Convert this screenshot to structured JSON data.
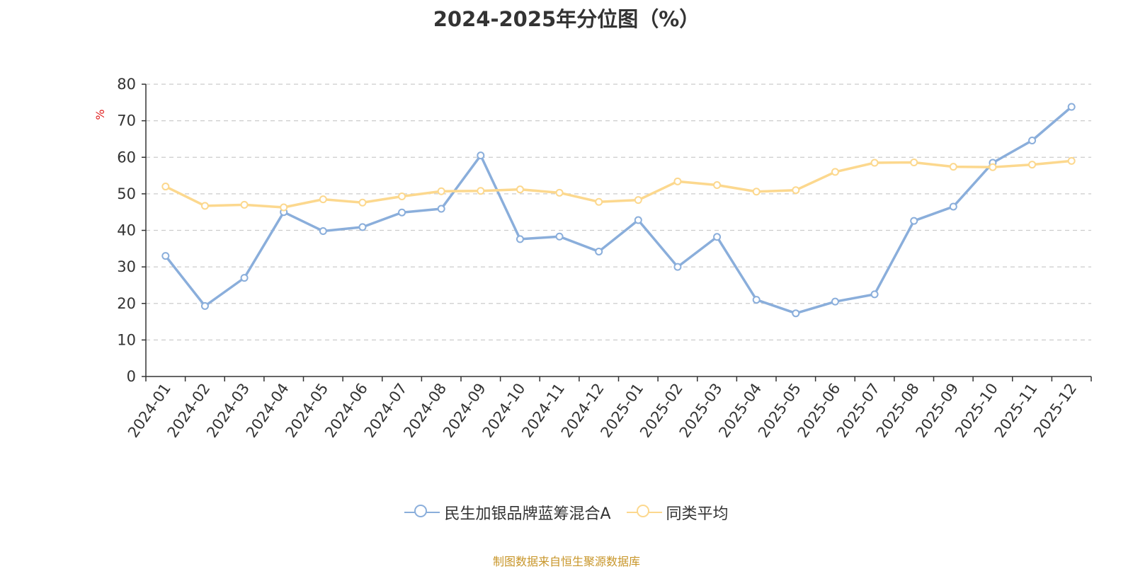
{
  "colors": {
    "series_a": "#8aaedb",
    "series_b": "#fcd88e",
    "axis": "#333333",
    "grid": "#cccccc",
    "ylabel": "#e02020",
    "source": "#c8962a"
  },
  "chart_data": {
    "type": "line",
    "title": "2024-2025年分位图（%）",
    "ylabel": "%",
    "xlabel": "",
    "ylim": [
      0,
      80
    ],
    "yticks": [
      0,
      10,
      20,
      30,
      40,
      50,
      60,
      70,
      80
    ],
    "grid": true,
    "legend_position": "bottom-center",
    "categories": [
      "2024-01",
      "2024-02",
      "2024-03",
      "2024-04",
      "2024-05",
      "2024-06",
      "2024-07",
      "2024-08",
      "2024-09",
      "2024-10",
      "2024-11",
      "2024-12",
      "2025-01",
      "2025-02",
      "2025-03",
      "2025-04",
      "2025-05",
      "2025-06",
      "2025-07",
      "2025-08",
      "2025-09",
      "2025-10",
      "2025-11",
      "2025-12"
    ],
    "series": [
      {
        "name": "民生加银品牌蓝筹混合A",
        "color_key": "series_a",
        "values": [
          33.0,
          19.3,
          27.0,
          45.0,
          39.8,
          40.9,
          44.9,
          45.9,
          60.5,
          37.6,
          38.3,
          34.2,
          42.8,
          30.0,
          38.2,
          21.0,
          17.3,
          20.5,
          22.5,
          42.6,
          46.5,
          58.5,
          64.6,
          73.8
        ]
      },
      {
        "name": "同类平均",
        "color_key": "series_b",
        "values": [
          52.0,
          46.7,
          47.0,
          46.3,
          48.5,
          47.6,
          49.3,
          50.7,
          50.8,
          51.2,
          50.3,
          47.8,
          48.3,
          53.4,
          52.4,
          50.6,
          51.0,
          56.0,
          58.5,
          58.6,
          57.4,
          57.3,
          58.0,
          59.0
        ]
      }
    ]
  },
  "source_note": "制图数据来自恒生聚源数据库"
}
